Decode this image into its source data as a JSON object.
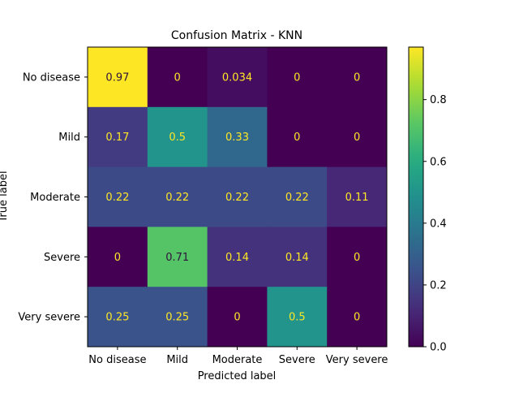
{
  "chart_data": {
    "type": "heatmap",
    "title": "Confusion Matrix - KNN",
    "xlabel": "Predicted label",
    "ylabel": "True label",
    "x_categories": [
      "No disease",
      "Mild",
      "Moderate",
      "Severe",
      "Very severe"
    ],
    "y_categories": [
      "No disease",
      "Mild",
      "Moderate",
      "Severe",
      "Very severe"
    ],
    "values": [
      [
        0.97,
        0,
        0.034,
        0,
        0
      ],
      [
        0.17,
        0.5,
        0.33,
        0,
        0
      ],
      [
        0.22,
        0.22,
        0.22,
        0.22,
        0.11
      ],
      [
        0,
        0.71,
        0.14,
        0.14,
        0
      ],
      [
        0.25,
        0.25,
        0,
        0.5,
        0
      ]
    ],
    "value_labels": [
      [
        "0.97",
        "0",
        "0.034",
        "0",
        "0"
      ],
      [
        "0.17",
        "0.5",
        "0.33",
        "0",
        "0"
      ],
      [
        "0.22",
        "0.22",
        "0.22",
        "0.22",
        "0.11"
      ],
      [
        "0",
        "0.71",
        "0.14",
        "0.14",
        "0"
      ],
      [
        "0.25",
        "0.25",
        "0",
        "0.5",
        "0"
      ]
    ],
    "colormap": "viridis",
    "color_range": [
      0,
      0.97
    ],
    "colorbar_ticks": [
      0.0,
      0.2,
      0.4,
      0.6,
      0.8
    ],
    "colorbar_tick_labels": [
      "0.0",
      "0.2",
      "0.4",
      "0.6",
      "0.8"
    ],
    "text_color_light": "#fde725",
    "text_color_dark": "#30123b"
  }
}
